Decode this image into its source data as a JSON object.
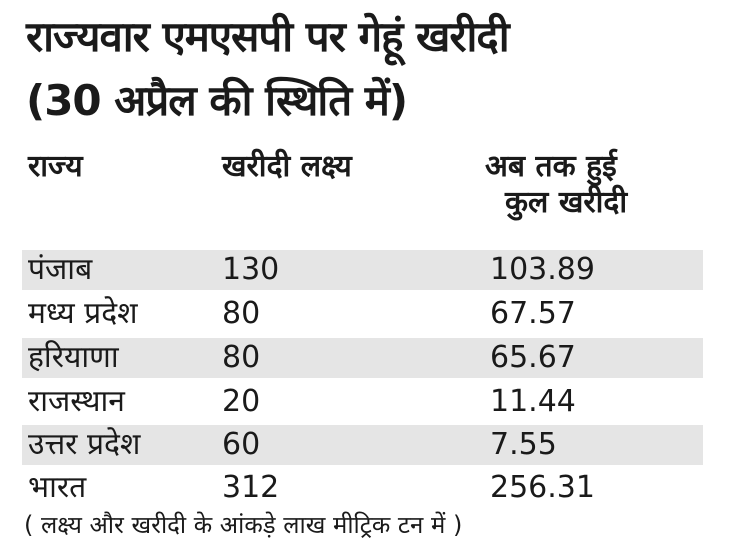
{
  "title": {
    "line1": "राज्यवार एमएसपी पर गेहूं खरीदी",
    "line2": "(30 अप्रैल की स्थिति में)"
  },
  "columns": [
    "राज्य",
    "खरीदी लक्ष्य",
    "अब तक हुई",
    "कुल खरीदी"
  ],
  "rows": [
    {
      "state": "पंजाब",
      "target": "130",
      "procured": "103.89"
    },
    {
      "state": "मध्य प्रदेश",
      "target": "80",
      "procured": "67.57"
    },
    {
      "state": "हरियाणा",
      "target": "80",
      "procured": "65.67"
    },
    {
      "state": "राजस्थान",
      "target": "20",
      "procured": "11.44"
    },
    {
      "state": "उत्तर प्रदेश",
      "target": "60",
      "procured": "7.55"
    },
    {
      "state": "भारत",
      "target": "312",
      "procured": "256.31"
    }
  ],
  "note": "( लक्ष्य और खरीदी के आंकड़े लाख मीट्रिक टन में )",
  "colors": {
    "row_shade": "#e5e5e5",
    "text": "#1a1a1a"
  }
}
